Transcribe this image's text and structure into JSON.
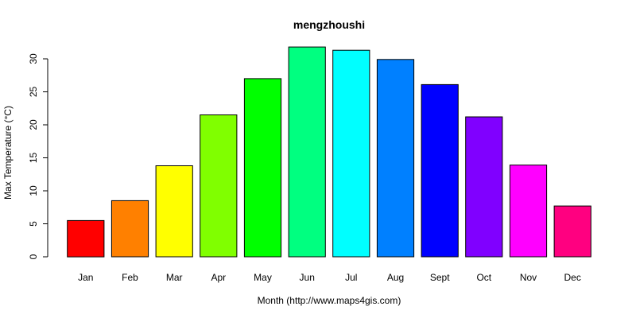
{
  "chart_data": {
    "type": "bar",
    "title": "mengzhoushi",
    "xlabel": "Month (http://www.maps4gis.com)",
    "ylabel": "Max Temperature (°C)",
    "categories": [
      "Jan",
      "Feb",
      "Mar",
      "Apr",
      "May",
      "Jun",
      "Jul",
      "Aug",
      "Sept",
      "Oct",
      "Nov",
      "Dec"
    ],
    "values": [
      5.5,
      8.5,
      13.8,
      21.5,
      27.0,
      31.8,
      31.3,
      29.9,
      26.1,
      21.2,
      13.9,
      7.7
    ],
    "colors": [
      "#FF0000",
      "#FF8000",
      "#FFFF00",
      "#80FF00",
      "#00FF00",
      "#00FF80",
      "#00FFFF",
      "#0080FF",
      "#0000FF",
      "#8000FF",
      "#FF00FF",
      "#FF0080"
    ],
    "yticks": [
      0,
      5,
      10,
      15,
      20,
      25,
      30
    ],
    "ylim": [
      0,
      32
    ],
    "grid": false,
    "legend": "none"
  }
}
